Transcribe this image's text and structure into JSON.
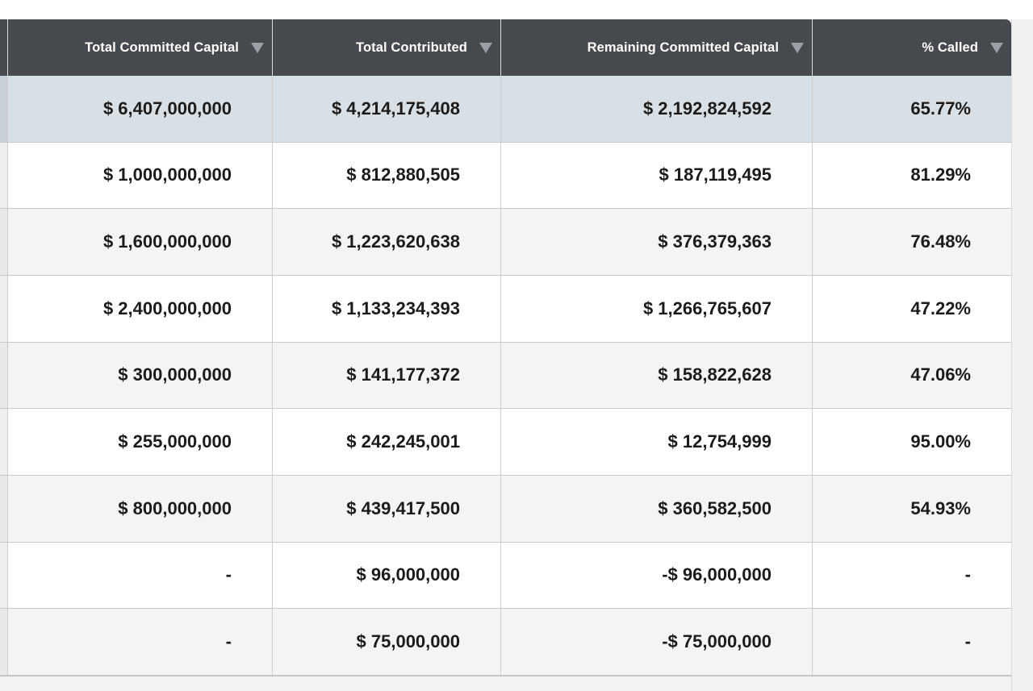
{
  "table": {
    "columns": [
      {
        "label": "Total Committed Capital",
        "sort_icon": "sort-descending-triangle"
      },
      {
        "label": "Total Contributed",
        "sort_icon": "sort-descending-triangle"
      },
      {
        "label": "Remaining Committed Capital",
        "sort_icon": "sort-descending-triangle"
      },
      {
        "label": "% Called",
        "sort_icon": "sort-descending-triangle"
      }
    ],
    "rows": [
      {
        "emphasized": true,
        "cells": [
          "$ 6,407,000,000",
          "$ 4,214,175,408",
          "$ 2,192,824,592",
          "65.77%"
        ]
      },
      {
        "emphasized": false,
        "cells": [
          "$ 1,000,000,000",
          "$ 812,880,505",
          "$ 187,119,495",
          "81.29%"
        ]
      },
      {
        "emphasized": false,
        "cells": [
          "$ 1,600,000,000",
          "$ 1,223,620,638",
          "$ 376,379,363",
          "76.48%"
        ]
      },
      {
        "emphasized": false,
        "cells": [
          "$ 2,400,000,000",
          "$ 1,133,234,393",
          "$ 1,266,765,607",
          "47.22%"
        ]
      },
      {
        "emphasized": false,
        "cells": [
          "$ 300,000,000",
          "$ 141,177,372",
          "$ 158,822,628",
          "47.06%"
        ]
      },
      {
        "emphasized": false,
        "cells": [
          "$ 255,000,000",
          "$ 242,245,001",
          "$ 12,754,999",
          "95.00%"
        ]
      },
      {
        "emphasized": false,
        "cells": [
          "$ 800,000,000",
          "$ 439,417,500",
          "$ 360,582,500",
          "54.93%"
        ]
      },
      {
        "emphasized": false,
        "cells": [
          "-",
          "$ 96,000,000",
          "-$ 96,000,000",
          "-"
        ]
      },
      {
        "emphasized": false,
        "cells": [
          "-",
          "$ 75,000,000",
          "-$ 75,000,000",
          "-"
        ]
      }
    ]
  },
  "colors": {
    "header_bg": "#46494e",
    "header_text": "#ffffff",
    "sort_arrow": "#9aa0a6",
    "emphasized_row_bg": "#d9e0e5",
    "stripe_row_bg": "#f4f4f4",
    "row_text": "#1b1b1b"
  }
}
